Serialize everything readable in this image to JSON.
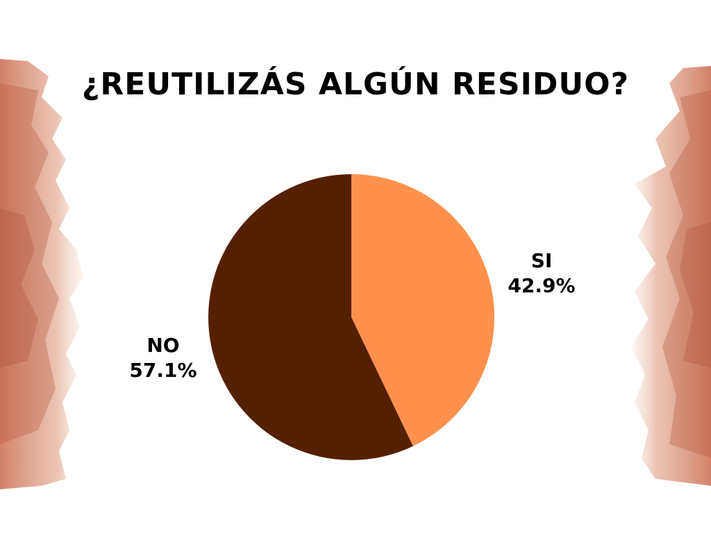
{
  "chart_data": {
    "type": "pie",
    "title": "¿REUTILIZÁS ALGÚN RESIDUO?",
    "categories": [
      "SI",
      "NO"
    ],
    "values": [
      42.9,
      57.1
    ],
    "value_labels": [
      "42.9%",
      "57.1%"
    ],
    "colors": [
      "#ff914d",
      "#552000"
    ],
    "legend": "none"
  },
  "colors": {
    "background": "#ffffff",
    "title": "#000000",
    "decoration": "#d9866a"
  }
}
